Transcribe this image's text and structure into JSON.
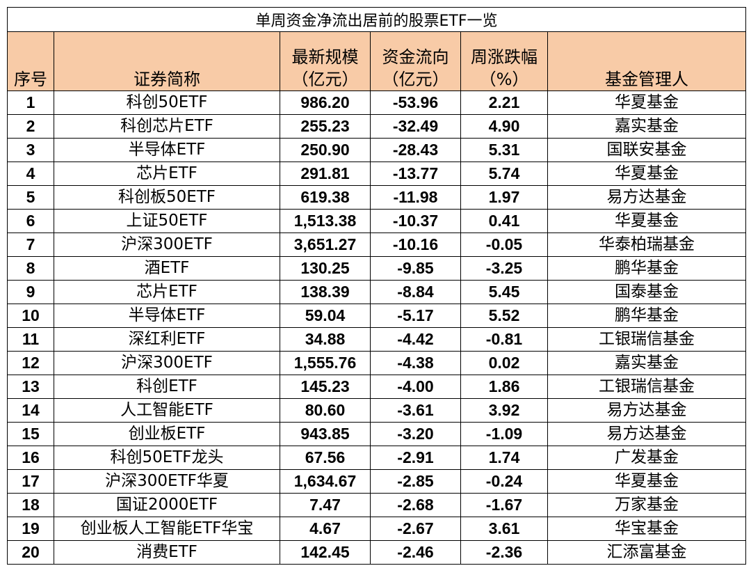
{
  "title": "单周资金净流出居前的股票ETF一览",
  "headers": {
    "index": "序号",
    "name": "证券简称",
    "size_l1": "最新规模",
    "size_l2": "（亿元）",
    "flow_l1": "资金流向",
    "flow_l2": "（亿元）",
    "change_l1": "周涨跌幅",
    "change_l2": "（%）",
    "manager": "基金管理人"
  },
  "rows": [
    {
      "index": "1",
      "name": "科创50ETF",
      "size": "986.20",
      "flow": "-53.96",
      "change": "2.21",
      "manager": "华夏基金"
    },
    {
      "index": "2",
      "name": "科创芯片ETF",
      "size": "255.23",
      "flow": "-32.49",
      "change": "4.90",
      "manager": "嘉实基金"
    },
    {
      "index": "3",
      "name": "半导体ETF",
      "size": "250.90",
      "flow": "-28.43",
      "change": "5.31",
      "manager": "国联安基金"
    },
    {
      "index": "4",
      "name": "芯片ETF",
      "size": "291.81",
      "flow": "-13.77",
      "change": "5.74",
      "manager": "华夏基金"
    },
    {
      "index": "5",
      "name": "科创板50ETF",
      "size": "619.38",
      "flow": "-11.98",
      "change": "1.97",
      "manager": "易方达基金"
    },
    {
      "index": "6",
      "name": "上证50ETF",
      "size": "1,513.38",
      "flow": "-10.37",
      "change": "0.41",
      "manager": "华夏基金"
    },
    {
      "index": "7",
      "name": "沪深300ETF",
      "size": "3,651.27",
      "flow": "-10.16",
      "change": "-0.05",
      "manager": "华泰柏瑞基金"
    },
    {
      "index": "8",
      "name": "酒ETF",
      "size": "130.25",
      "flow": "-9.85",
      "change": "-3.25",
      "manager": "鹏华基金"
    },
    {
      "index": "9",
      "name": "芯片ETF",
      "size": "138.39",
      "flow": "-8.84",
      "change": "5.45",
      "manager": "国泰基金"
    },
    {
      "index": "10",
      "name": "半导体ETF",
      "size": "59.04",
      "flow": "-5.17",
      "change": "5.52",
      "manager": "鹏华基金"
    },
    {
      "index": "11",
      "name": "深红利ETF",
      "size": "34.88",
      "flow": "-4.42",
      "change": "-0.81",
      "manager": "工银瑞信基金"
    },
    {
      "index": "12",
      "name": "沪深300ETF",
      "size": "1,555.76",
      "flow": "-4.38",
      "change": "0.02",
      "manager": "嘉实基金"
    },
    {
      "index": "13",
      "name": "科创ETF",
      "size": "145.23",
      "flow": "-4.00",
      "change": "1.86",
      "manager": "工银瑞信基金"
    },
    {
      "index": "14",
      "name": "人工智能ETF",
      "size": "80.60",
      "flow": "-3.61",
      "change": "3.92",
      "manager": "易方达基金"
    },
    {
      "index": "15",
      "name": "创业板ETF",
      "size": "943.85",
      "flow": "-3.20",
      "change": "-1.09",
      "manager": "易方达基金"
    },
    {
      "index": "16",
      "name": "科创50ETF龙头",
      "size": "67.56",
      "flow": "-2.91",
      "change": "1.74",
      "manager": "广发基金"
    },
    {
      "index": "17",
      "name": "沪深300ETF华夏",
      "size": "1,634.67",
      "flow": "-2.85",
      "change": "-0.24",
      "manager": "华夏基金"
    },
    {
      "index": "18",
      "name": "国证2000ETF",
      "size": "7.47",
      "flow": "-2.68",
      "change": "-1.67",
      "manager": "万家基金"
    },
    {
      "index": "19",
      "name": "创业板人工智能ETF华宝",
      "size": "4.67",
      "flow": "-2.67",
      "change": "3.61",
      "manager": "华宝基金"
    },
    {
      "index": "20",
      "name": "消费ETF",
      "size": "142.45",
      "flow": "-2.46",
      "change": "-2.36",
      "manager": "汇添富基金"
    }
  ],
  "colors": {
    "header_bg": "#f8cba7",
    "border": "#000000"
  }
}
